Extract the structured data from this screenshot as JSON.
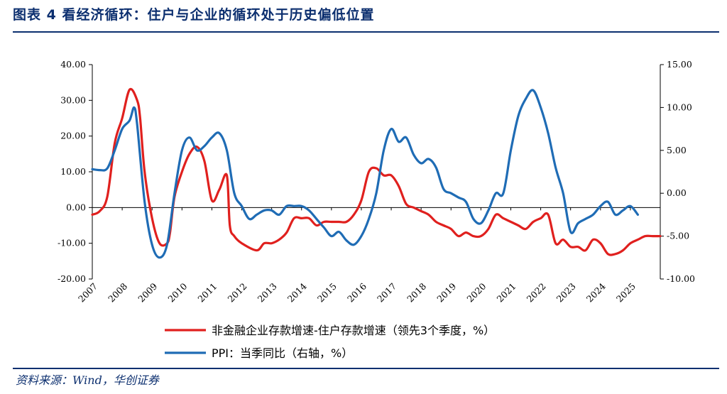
{
  "header": {
    "title": "图表 4   看经济循环：住户与企业的循环处于历史偏低位置"
  },
  "footer": {
    "source": "资料来源：Wind，华创证券"
  },
  "chart_data": {
    "type": "line",
    "title": "看经济循环：住户与企业的循环处于历史偏低位置",
    "x_ticks": [
      "2007",
      "2008",
      "2009",
      "2010",
      "2011",
      "2012",
      "2013",
      "2014",
      "2015",
      "2016",
      "2017",
      "2018",
      "2019",
      "2020",
      "2021",
      "2022",
      "2023",
      "2024",
      "2025"
    ],
    "y_left": {
      "ylim": [
        -20,
        40
      ],
      "ticks": [
        "40.00",
        "30.00",
        "20.00",
        "10.00",
        "0.00",
        "-10.00",
        "-20.00"
      ]
    },
    "y_right": {
      "ylim": [
        -10,
        15
      ],
      "ticks": [
        "15.00",
        "10.00",
        "5.00",
        "0.00",
        "-5.00",
        "-10.00"
      ]
    },
    "legend_position": "bottom",
    "grid": false,
    "series": [
      {
        "name": "非金融企业存款增速-住户存款增速（领先3个季度，%）",
        "axis": "left",
        "color": "#e0201e",
        "x": [
          2007.0,
          2007.25,
          2007.5,
          2007.75,
          2008.0,
          2008.25,
          2008.5,
          2008.6,
          2008.75,
          2009.0,
          2009.25,
          2009.5,
          2009.6,
          2009.75,
          2010.0,
          2010.25,
          2010.5,
          2010.75,
          2011.0,
          2011.25,
          2011.5,
          2011.6,
          2011.75,
          2012.0,
          2012.5,
          2012.75,
          2013.0,
          2013.25,
          2013.5,
          2013.75,
          2014.0,
          2014.25,
          2014.5,
          2014.75,
          2015.0,
          2015.25,
          2015.5,
          2015.75,
          2016.0,
          2016.25,
          2016.5,
          2016.75,
          2017.0,
          2017.25,
          2017.5,
          2017.75,
          2018.0,
          2018.25,
          2018.5,
          2018.75,
          2019.0,
          2019.25,
          2019.5,
          2019.75,
          2020.0,
          2020.25,
          2020.5,
          2020.75,
          2021.0,
          2021.25,
          2021.5,
          2021.75,
          2022.0,
          2022.25,
          2022.5,
          2022.75,
          2023.0,
          2023.25,
          2023.5,
          2023.75,
          2024.0,
          2024.25,
          2024.5,
          2024.75,
          2025.0,
          2025.25,
          2025.5,
          2025.75,
          2026.0
        ],
        "values": [
          -2,
          -1,
          3,
          18,
          25,
          33,
          30,
          25,
          10,
          -3,
          -10,
          -10,
          -7,
          3,
          10,
          15,
          17,
          13,
          2,
          5,
          9,
          -5,
          -8,
          -10,
          -12,
          -10,
          -10,
          -9,
          -7,
          -3,
          -3,
          -3,
          -5,
          -4,
          -4,
          -4,
          -4,
          -2,
          2,
          10,
          11,
          9,
          9,
          6,
          1,
          0,
          -1,
          -2,
          -4,
          -5,
          -6,
          -8,
          -7,
          -8,
          -8,
          -6,
          -2,
          -3,
          -4,
          -5,
          -6,
          -4,
          -3,
          -2,
          -10,
          -9,
          -11,
          -11,
          -12,
          -9,
          -10,
          -13,
          -13,
          -12,
          -10,
          -9,
          -8,
          -8,
          -8
        ]
      },
      {
        "name": "PPI：当季同比（右轴，%）",
        "axis": "right",
        "color": "#1f6cb5",
        "x": [
          2007.0,
          2007.25,
          2007.5,
          2007.75,
          2008.0,
          2008.25,
          2008.4,
          2008.5,
          2008.75,
          2009.0,
          2009.25,
          2009.5,
          2009.75,
          2010.0,
          2010.25,
          2010.5,
          2010.75,
          2011.0,
          2011.25,
          2011.5,
          2011.75,
          2012.0,
          2012.25,
          2012.5,
          2012.75,
          2013.0,
          2013.25,
          2013.5,
          2013.75,
          2014.0,
          2014.25,
          2014.5,
          2014.75,
          2015.0,
          2015.25,
          2015.5,
          2015.75,
          2016.0,
          2016.25,
          2016.5,
          2016.75,
          2017.0,
          2017.25,
          2017.5,
          2017.75,
          2018.0,
          2018.25,
          2018.5,
          2018.75,
          2019.0,
          2019.25,
          2019.5,
          2019.75,
          2020.0,
          2020.25,
          2020.5,
          2020.75,
          2021.0,
          2021.25,
          2021.5,
          2021.75,
          2022.0,
          2022.25,
          2022.5,
          2022.75,
          2023.0,
          2023.25,
          2023.5,
          2023.75,
          2024.0,
          2024.25,
          2024.5,
          2024.75,
          2025.0,
          2025.25
        ],
        "values": [
          2.8,
          2.7,
          2.9,
          5,
          7.5,
          8.5,
          10,
          8,
          -1,
          -6,
          -7.5,
          -6,
          0,
          5,
          6.5,
          5,
          5.5,
          6.5,
          7,
          5,
          0,
          -1.5,
          -3,
          -2.5,
          -2,
          -2,
          -2.5,
          -1.5,
          -1.5,
          -1.5,
          -2,
          -3,
          -4,
          -5,
          -4.5,
          -5.5,
          -6,
          -5,
          -3,
          0,
          5,
          7.5,
          6,
          6.5,
          4.5,
          3.5,
          4,
          3,
          0.5,
          0,
          -0.5,
          -1,
          -3,
          -3.5,
          -2,
          0,
          0,
          5,
          9,
          11,
          12,
          10,
          7,
          3,
          0,
          -4.5,
          -3.5,
          -3,
          -2.5,
          -1.5,
          -1,
          -2.5,
          -2,
          -1.5,
          -2.5
        ]
      }
    ]
  }
}
